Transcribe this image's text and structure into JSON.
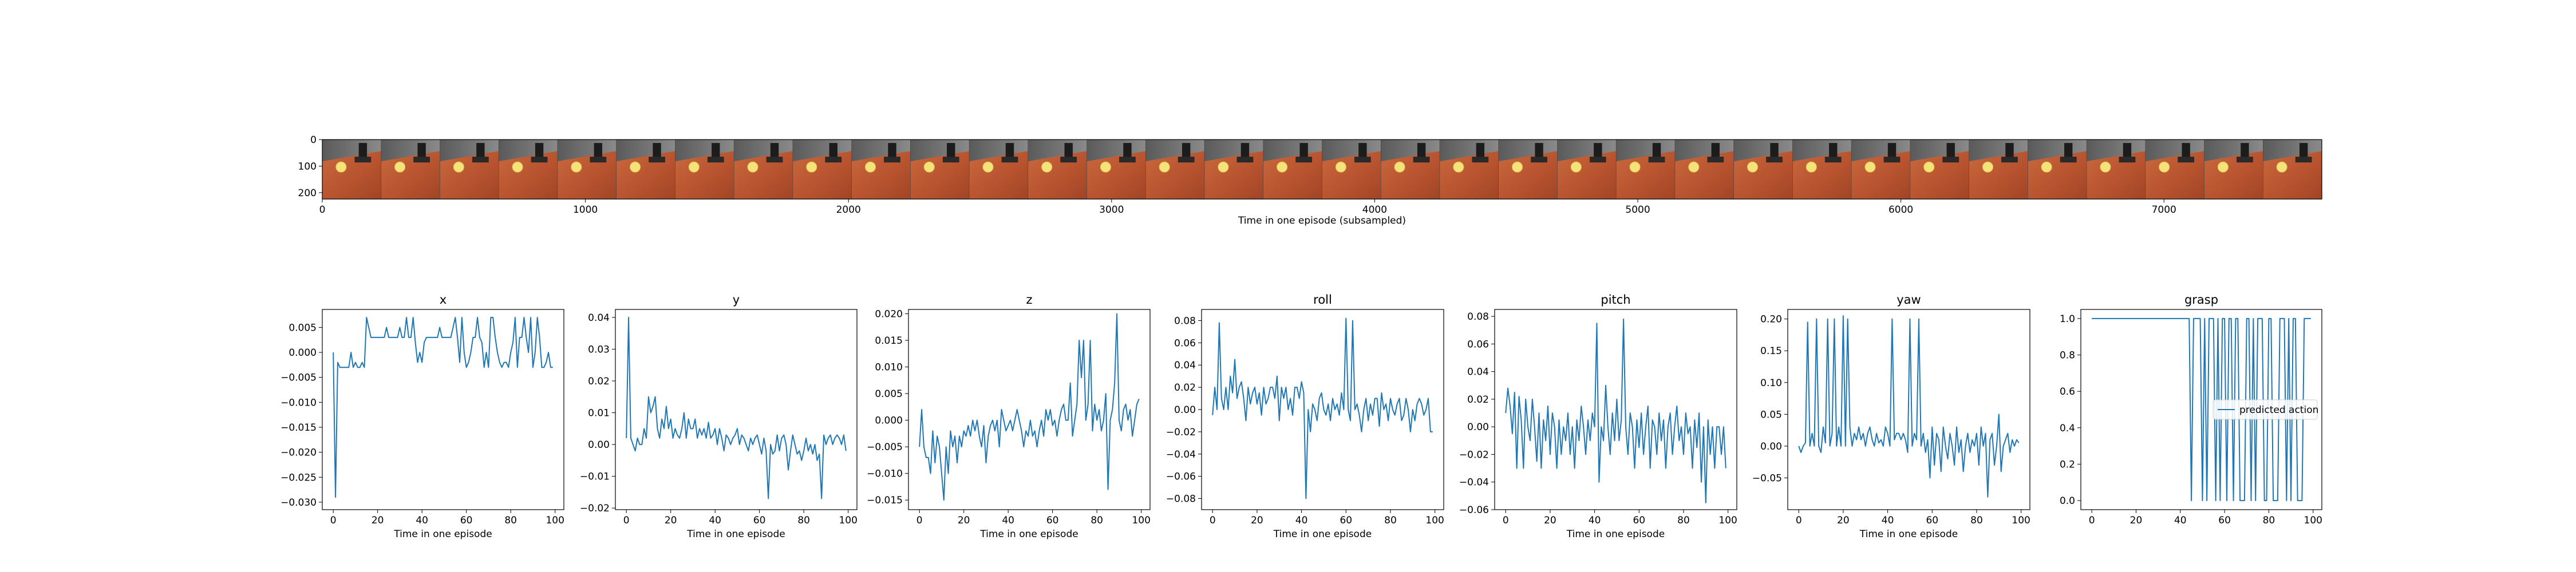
{
  "colors": {
    "line": "#1f77b4",
    "axes": "#000000",
    "background": "#ffffff"
  },
  "filmstrip": {
    "xlabel": "Time in one episode (subsampled)",
    "xlim": [
      0,
      7600
    ],
    "xticks": [
      "0",
      "1000",
      "2000",
      "3000",
      "4000",
      "5000",
      "6000",
      "7000"
    ],
    "ylim": [
      0,
      224
    ],
    "yticks": [
      "0",
      "100",
      "200"
    ],
    "frames": 34,
    "frame_description": "Stacked camera frames of a robot gripper above an orange surface with a yellow ball"
  },
  "chart_data": [
    {
      "type": "line",
      "title": "x",
      "xlabel": "Time in one episode",
      "xlim": [
        -4.95,
        103.95
      ],
      "ylim": [
        -0.0315,
        0.0086
      ],
      "xticks": [
        0,
        20,
        40,
        60,
        80,
        100
      ],
      "yticks": [
        -0.03,
        -0.025,
        -0.02,
        -0.015,
        -0.01,
        -0.005,
        0.0,
        0.005
      ],
      "ytick_labels": [
        "−0.030",
        "−0.025",
        "−0.020",
        "−0.015",
        "−0.010",
        "−0.005",
        "0.000",
        "0.005"
      ],
      "xtick_labels": [
        "0",
        "20",
        "40",
        "60",
        "80",
        "100"
      ],
      "values": [
        0.0,
        -0.029,
        -0.002,
        -0.003,
        -0.003,
        -0.003,
        -0.003,
        -0.003,
        0.0,
        -0.003,
        -0.002,
        -0.003,
        -0.003,
        -0.002,
        -0.003,
        0.007,
        0.005,
        0.003,
        0.003,
        0.003,
        0.003,
        0.003,
        0.003,
        0.003,
        0.005,
        0.003,
        0.003,
        0.003,
        0.003,
        0.003,
        0.005,
        0.003,
        0.003,
        0.007,
        0.003,
        0.003,
        0.007,
        0.002,
        -0.002,
        0.0,
        -0.002,
        0.002,
        0.003,
        0.003,
        0.003,
        0.003,
        0.003,
        0.003,
        0.005,
        0.003,
        0.003,
        0.003,
        0.003,
        0.003,
        0.005,
        0.007,
        0.003,
        -0.002,
        0.007,
        0.0,
        -0.003,
        -0.002,
        0.0,
        0.003,
        0.003,
        0.007,
        0.003,
        0.002,
        -0.003,
        0.0,
        -0.003,
        0.007,
        0.007,
        0.003,
        0.0,
        -0.002,
        -0.003,
        -0.002,
        -0.002,
        -0.003,
        0.0,
        0.002,
        0.007,
        -0.003,
        0.003,
        0.003,
        0.007,
        0.003,
        0.0,
        0.007,
        -0.003,
        0.0,
        0.007,
        0.003,
        -0.003,
        -0.003,
        -0.002,
        0.0,
        -0.003,
        -0.003
      ]
    },
    {
      "type": "line",
      "title": "y",
      "xlabel": "Time in one episode",
      "xlim": [
        -4.95,
        103.95
      ],
      "ylim": [
        -0.0205,
        0.0425
      ],
      "xticks": [
        0,
        20,
        40,
        60,
        80,
        100
      ],
      "yticks": [
        -0.02,
        -0.01,
        0.0,
        0.01,
        0.02,
        0.03,
        0.04
      ],
      "ytick_labels": [
        "−0.02",
        "−0.01",
        "0.00",
        "0.01",
        "0.02",
        "0.03",
        "0.04"
      ],
      "xtick_labels": [
        "0",
        "20",
        "40",
        "60",
        "80",
        "100"
      ],
      "values": [
        0.002,
        0.04,
        0.002,
        0.0,
        -0.002,
        0.002,
        0.0,
        0.0,
        0.005,
        0.002,
        0.015,
        0.01,
        0.012,
        0.015,
        0.005,
        0.002,
        0.008,
        0.005,
        0.012,
        0.005,
        0.008,
        0.002,
        0.005,
        0.003,
        0.002,
        0.005,
        0.01,
        0.002,
        0.008,
        0.005,
        0.005,
        0.008,
        0.002,
        0.005,
        0.003,
        0.005,
        0.002,
        0.007,
        0.002,
        0.003,
        0.005,
        0.0,
        0.005,
        0.002,
        -0.002,
        0.003,
        0.002,
        0.0,
        0.002,
        0.003,
        0.005,
        0.0,
        0.003,
        0.002,
        0.0,
        -0.002,
        0.002,
        0.0,
        0.002,
        0.003,
        0.0,
        -0.003,
        0.002,
        -0.002,
        -0.017,
        0.0,
        -0.003,
        -0.002,
        0.003,
        -0.002,
        0.002,
        0.003,
        0.0,
        -0.008,
        -0.002,
        0.003,
        0.0,
        -0.003,
        -0.002,
        -0.005,
        -0.002,
        0.002,
        -0.002,
        0.0,
        -0.003,
        0.0,
        -0.005,
        -0.003,
        -0.017,
        0.003,
        0.0,
        0.002,
        0.003,
        0.0,
        0.002,
        0.003,
        0.002,
        0.0,
        0.003,
        -0.002
      ]
    },
    {
      "type": "line",
      "title": "z",
      "xlabel": "Time in one episode",
      "xlim": [
        -4.95,
        103.95
      ],
      "ylim": [
        -0.0168,
        0.0208
      ],
      "xticks": [
        0,
        20,
        40,
        60,
        80,
        100
      ],
      "yticks": [
        -0.015,
        -0.01,
        -0.005,
        0.0,
        0.005,
        0.01,
        0.015,
        0.02
      ],
      "ytick_labels": [
        "−0.015",
        "−0.010",
        "−0.005",
        "0.000",
        "0.005",
        "0.010",
        "0.015",
        "0.020"
      ],
      "xtick_labels": [
        "0",
        "20",
        "40",
        "60",
        "80",
        "100"
      ],
      "values": [
        -0.005,
        0.002,
        -0.005,
        -0.007,
        -0.007,
        -0.01,
        -0.002,
        -0.008,
        -0.003,
        -0.005,
        -0.01,
        -0.015,
        -0.005,
        -0.01,
        -0.002,
        -0.005,
        -0.003,
        -0.008,
        -0.003,
        -0.005,
        -0.002,
        -0.003,
        -0.001,
        -0.003,
        0.0,
        -0.002,
        0.0,
        -0.003,
        -0.005,
        -0.001,
        -0.008,
        -0.003,
        -0.001,
        0.0,
        -0.002,
        0.0,
        -0.005,
        0.002,
        0.0,
        -0.002,
        -0.001,
        0.0,
        -0.002,
        0.0,
        0.002,
        0.0,
        -0.002,
        -0.005,
        -0.002,
        -0.003,
        0.0,
        -0.003,
        -0.002,
        -0.005,
        -0.002,
        0.0,
        -0.003,
        0.002,
        0.0,
        0.002,
        -0.001,
        0.0,
        -0.003,
        0.0,
        0.002,
        0.003,
        0.0,
        0.0,
        0.007,
        -0.003,
        0.0,
        0.003,
        0.015,
        0.008,
        0.015,
        0.0,
        0.003,
        0.015,
        -0.002,
        0.003,
        0.0,
        0.002,
        -0.002,
        0.0,
        0.005,
        -0.013,
        0.0,
        0.002,
        0.007,
        0.02,
        0.0,
        -0.002,
        0.002,
        0.003,
        0.0,
        0.002,
        -0.003,
        0.0,
        0.003,
        0.004
      ]
    },
    {
      "type": "line",
      "title": "roll",
      "xlabel": "Time in one episode",
      "xlim": [
        -4.95,
        103.95
      ],
      "ylim": [
        -0.09,
        0.09
      ],
      "xticks": [
        0,
        20,
        40,
        60,
        80,
        100
      ],
      "yticks": [
        -0.08,
        -0.06,
        -0.04,
        -0.02,
        0.0,
        0.02,
        0.04,
        0.06,
        0.08
      ],
      "ytick_labels": [
        "−0.08",
        "−0.06",
        "−0.04",
        "−0.02",
        "0.00",
        "0.02",
        "0.04",
        "0.06",
        "0.08"
      ],
      "xtick_labels": [
        "0",
        "20",
        "40",
        "60",
        "80",
        "100"
      ],
      "values": [
        -0.005,
        0.02,
        0.0,
        0.078,
        0.01,
        0.0,
        0.02,
        0.0,
        0.03,
        0.015,
        0.045,
        0.01,
        0.02,
        0.025,
        0.01,
        -0.01,
        0.02,
        0.005,
        0.015,
        0.02,
        0.005,
        0.015,
        -0.005,
        0.02,
        0.005,
        0.01,
        0.02,
        0.02,
        0.01,
        0.03,
        -0.01,
        0.02,
        0.01,
        0.02,
        0.0,
        0.01,
        -0.005,
        0.02,
        0.02,
        0.01,
        0.025,
        0.015,
        -0.08,
        0.0,
        -0.02,
        0.005,
        0.0,
        -0.01,
        0.01,
        0.015,
        0.0,
        -0.005,
        0.005,
        -0.01,
        0.01,
        0.0,
        0.005,
        -0.005,
        0.015,
        0.0,
        0.082,
        0.0,
        -0.01,
        0.08,
        0.0,
        0.005,
        -0.005,
        -0.02,
        0.0,
        0.01,
        -0.01,
        0.005,
        -0.005,
        0.01,
        0.01,
        -0.015,
        0.015,
        0.0,
        0.005,
        -0.01,
        0.01,
        0.0,
        -0.005,
        0.005,
        0.01,
        -0.01,
        -0.005,
        0.01,
        0.0,
        -0.02,
        0.0,
        -0.01,
        0.005,
        0.01,
        0.005,
        -0.005,
        0.0,
        0.01,
        -0.02,
        -0.02
      ]
    },
    {
      "type": "line",
      "title": "pitch",
      "xlabel": "Time in one episode",
      "xlim": [
        -4.95,
        103.95
      ],
      "ylim": [
        -0.06,
        0.085
      ],
      "xticks": [
        0,
        20,
        40,
        60,
        80,
        100
      ],
      "yticks": [
        -0.06,
        -0.04,
        -0.02,
        0.0,
        0.02,
        0.04,
        0.06,
        0.08
      ],
      "ytick_labels": [
        "−0.06",
        "−0.04",
        "−0.02",
        "0.00",
        "0.02",
        "0.04",
        "0.06",
        "0.08"
      ],
      "xtick_labels": [
        "0",
        "20",
        "40",
        "60",
        "80",
        "100"
      ],
      "values": [
        0.01,
        0.028,
        0.015,
        -0.005,
        0.025,
        -0.03,
        0.022,
        0.005,
        -0.03,
        0.02,
        0.0,
        -0.01,
        0.02,
        0.0,
        -0.025,
        0.01,
        -0.03,
        0.005,
        -0.01,
        0.015,
        -0.02,
        0.01,
        0.0,
        -0.03,
        0.005,
        -0.02,
        0.0,
        -0.01,
        0.01,
        -0.02,
        0.0,
        -0.03,
        0.005,
        -0.01,
        0.015,
        0.0,
        -0.02,
        0.005,
        -0.01,
        0.01,
        0.0,
        0.075,
        -0.04,
        0.0,
        -0.01,
        0.03,
        0.0,
        -0.02,
        0.01,
        -0.01,
        0.02,
        -0.01,
        0.005,
        0.078,
        0.0,
        -0.02,
        0.01,
        0.0,
        -0.03,
        0.005,
        -0.015,
        0.01,
        -0.02,
        0.0,
        0.015,
        -0.03,
        0.005,
        0.0,
        -0.02,
        0.01,
        -0.01,
        0.005,
        -0.03,
        0.0,
        0.01,
        -0.02,
        0.0,
        0.015,
        -0.01,
        0.0,
        -0.02,
        0.01,
        -0.005,
        0.0,
        -0.03,
        0.005,
        -0.015,
        0.01,
        -0.04,
        0.0,
        -0.055,
        0.005,
        -0.02,
        0.0,
        -0.03,
        0.0,
        0.0,
        -0.02,
        0.0,
        -0.03
      ]
    },
    {
      "type": "line",
      "title": "yaw",
      "xlabel": "Time in one episode",
      "xlim": [
        -4.95,
        103.95
      ],
      "ylim": [
        -0.1,
        0.215
      ],
      "xticks": [
        0,
        20,
        40,
        60,
        80,
        100
      ],
      "yticks": [
        -0.05,
        0.0,
        0.05,
        0.1,
        0.15,
        0.2
      ],
      "ytick_labels": [
        "−0.05",
        "0.00",
        "0.05",
        "0.10",
        "0.15",
        "0.20"
      ],
      "xtick_labels": [
        "0",
        "20",
        "40",
        "60",
        "80",
        "100"
      ],
      "values": [
        0.0,
        -0.01,
        0.0,
        0.005,
        0.195,
        0.0,
        0.02,
        0.0,
        0.2,
        0.0,
        -0.01,
        0.03,
        0.005,
        0.2,
        0.0,
        0.02,
        0.2,
        0.0,
        0.03,
        0.0,
        0.205,
        0.0,
        0.2,
        0.03,
        0.0,
        0.02,
        0.01,
        0.03,
        0.01,
        0.02,
        0.0,
        0.02,
        0.03,
        0.01,
        0.0,
        0.02,
        0.005,
        0.01,
        0.0,
        0.03,
        0.02,
        0.0,
        0.2,
        0.01,
        0.02,
        0.02,
        0.01,
        0.02,
        0.01,
        -0.01,
        0.2,
        0.0,
        0.02,
        0.01,
        0.2,
        0.0,
        0.02,
        -0.01,
        0.01,
        -0.05,
        0.03,
        -0.03,
        0.02,
        0.01,
        -0.04,
        0.03,
        0.0,
        -0.02,
        0.02,
        0.0,
        -0.03,
        0.03,
        -0.01,
        0.01,
        -0.04,
        0.0,
        0.02,
        -0.01,
        0.01,
        0.0,
        0.02,
        -0.03,
        0.03,
        0.0,
        0.02,
        -0.08,
        0.01,
        0.02,
        -0.03,
        0.0,
        0.05,
        -0.04,
        0.0,
        0.01,
        0.02,
        -0.01,
        0.01,
        0.0,
        0.01,
        0.005
      ]
    },
    {
      "type": "line",
      "title": "grasp",
      "xlabel": "",
      "xlim": [
        -4.95,
        103.95
      ],
      "ylim": [
        -0.05,
        1.05
      ],
      "xticks": [
        0,
        20,
        40,
        60,
        80,
        100
      ],
      "yticks": [
        0.0,
        0.2,
        0.4,
        0.6,
        0.8,
        1.0
      ],
      "ytick_labels": [
        "0.0",
        "0.2",
        "0.4",
        "0.6",
        "0.8",
        "1.0"
      ],
      "xtick_labels": [
        "0",
        "20",
        "40",
        "60",
        "80",
        "100"
      ],
      "legend": {
        "label": "predicted action",
        "position": "center-right"
      },
      "series": [
        {
          "name": "predicted action",
          "values": [
            1,
            1,
            1,
            1,
            1,
            1,
            1,
            1,
            1,
            1,
            1,
            1,
            1,
            1,
            1,
            1,
            1,
            1,
            1,
            1,
            1,
            1,
            1,
            1,
            1,
            1,
            1,
            1,
            1,
            1,
            1,
            1,
            1,
            1,
            1,
            1,
            1,
            1,
            1,
            1,
            1,
            1,
            1,
            1,
            1,
            0,
            1,
            1,
            1,
            1,
            0,
            1,
            0,
            1,
            1,
            1,
            0,
            1,
            0,
            1,
            1,
            0,
            1,
            1,
            0,
            1,
            1,
            0,
            0,
            0,
            1,
            1,
            0,
            1,
            0,
            1,
            1,
            1,
            0,
            0,
            1,
            1,
            0,
            0,
            0,
            1,
            1,
            1,
            0,
            1,
            0,
            1,
            1,
            0,
            0,
            0,
            1,
            1,
            1,
            1
          ]
        }
      ]
    }
  ]
}
